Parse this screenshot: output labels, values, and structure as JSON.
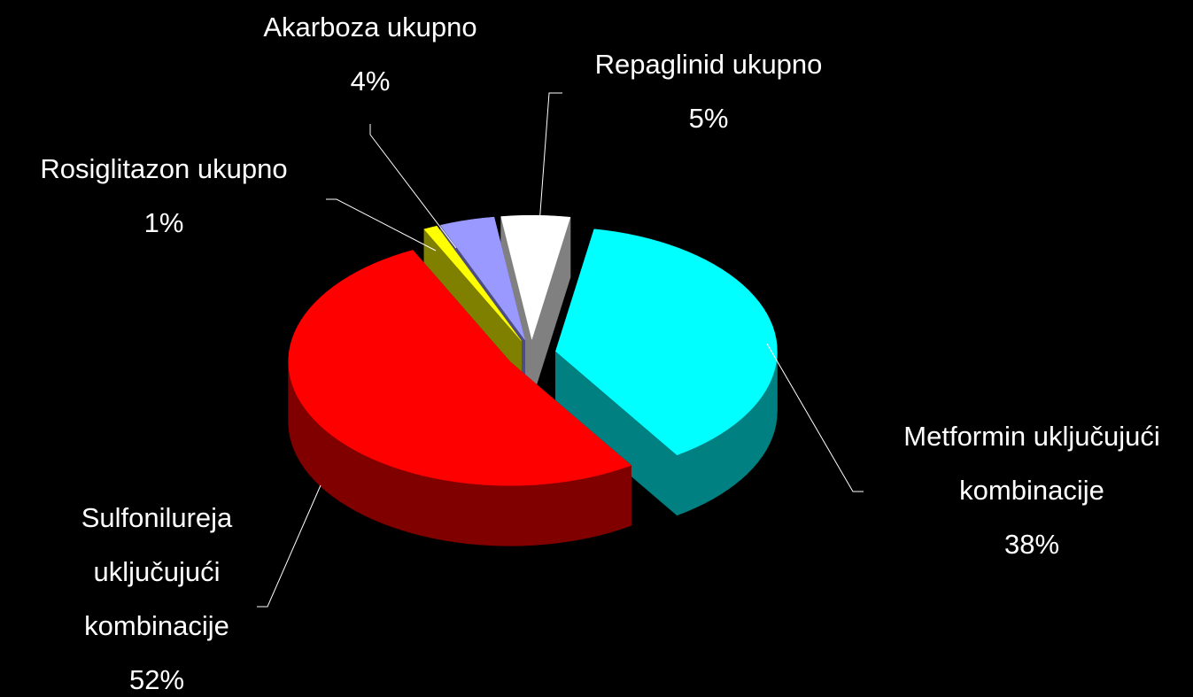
{
  "chart_data": {
    "type": "pie3d",
    "categories": [
      "Repaglinid ukupno",
      "Metformin uključujući kombinacije",
      "Sulfonilureja uključujući kombinacije",
      "Rosiglitazon ukupno",
      "Akarboza ukupno"
    ],
    "values": [
      5,
      38,
      52,
      1,
      4
    ],
    "value_labels": [
      "5%",
      "38%",
      "52%",
      "1%",
      "4%"
    ],
    "colors": [
      "#ffffff",
      "#00ffff",
      "#ff0000",
      "#ffff00",
      "#9999ff"
    ]
  }
}
